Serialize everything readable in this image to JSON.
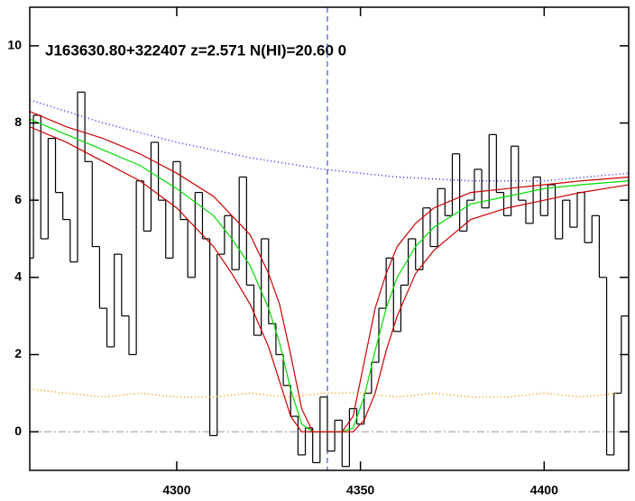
{
  "chart_data": {
    "type": "line",
    "title": "J163630.80+322407 z=2.571 N(HI)=20.60 0",
    "xlim": [
      4260,
      4423
    ],
    "ylim": [
      -1,
      11
    ],
    "xticks": [
      4300,
      4350,
      4400
    ],
    "yticks": [
      0,
      2,
      4,
      6,
      8,
      10
    ],
    "vline": 4341,
    "hline": 0,
    "flux": {
      "color": "#000000",
      "x": [
        4260,
        4262,
        4264,
        4266,
        4268,
        4270,
        4272,
        4274,
        4276,
        4278,
        4280,
        4282,
        4284,
        4286,
        4288,
        4290,
        4292,
        4294,
        4296,
        4298,
        4300,
        4302,
        4304,
        4306,
        4308,
        4310,
        4312,
        4314,
        4316,
        4318,
        4320,
        4322,
        4324,
        4326,
        4328,
        4330,
        4332,
        4334,
        4336,
        4338,
        4340,
        4342,
        4344,
        4346,
        4348,
        4350,
        4352,
        4354,
        4356,
        4358,
        4360,
        4362,
        4364,
        4366,
        4368,
        4370,
        4372,
        4374,
        4376,
        4378,
        4380,
        4382,
        4384,
        4386,
        4388,
        4390,
        4392,
        4394,
        4396,
        4398,
        4400,
        4402,
        4404,
        4406,
        4408,
        4410,
        4412,
        4414,
        4416,
        4418,
        4420,
        4422
      ],
      "values": [
        4.5,
        8.2,
        5.0,
        7.6,
        6.2,
        5.5,
        4.4,
        8.8,
        7.0,
        4.8,
        3.2,
        2.2,
        4.6,
        3.0,
        2.0,
        6.5,
        5.2,
        7.5,
        6.0,
        4.5,
        7.0,
        5.5,
        4.0,
        6.2,
        5.0,
        -0.1,
        4.6,
        5.6,
        4.2,
        6.6,
        3.8,
        2.5,
        5.0,
        2.8,
        2.0,
        1.2,
        0.4,
        -0.6,
        0.1,
        -0.8,
        0.9,
        -0.5,
        0.3,
        -0.9,
        0.6,
        0.2,
        1.0,
        1.8,
        3.2,
        4.5,
        2.6,
        3.8,
        5.0,
        4.2,
        5.8,
        4.8,
        6.3,
        5.6,
        7.2,
        5.2,
        6.0,
        6.8,
        5.8,
        7.7,
        6.2,
        5.6,
        7.4,
        6.0,
        5.4,
        6.6,
        5.6,
        6.4,
        5.0,
        6.0,
        5.3,
        6.2,
        4.9,
        5.6,
        4.0,
        -0.6,
        1.0,
        3.0
      ]
    },
    "series": [
      {
        "color": "#00dd00",
        "dash": "none",
        "x": [
          4260,
          4270,
          4280,
          4290,
          4300,
          4310,
          4315,
          4320,
          4325,
          4328,
          4331,
          4334,
          4337,
          4341,
          4345,
          4348,
          4351,
          4354,
          4357,
          4360,
          4365,
          4370,
          4380,
          4390,
          4400,
          4410,
          4423
        ],
        "values": [
          8.1,
          7.7,
          7.3,
          6.9,
          6.3,
          5.6,
          5.0,
          4.3,
          3.2,
          2.3,
          1.1,
          0.2,
          0,
          0,
          0,
          0.1,
          0.9,
          2.1,
          3.2,
          4.0,
          4.8,
          5.3,
          5.9,
          6.1,
          6.3,
          6.4,
          6.5
        ]
      },
      {
        "color": "#cc0000",
        "dash": "none",
        "x": [
          4260,
          4270,
          4280,
          4290,
          4300,
          4310,
          4315,
          4320,
          4325,
          4328,
          4331,
          4334,
          4337,
          4341,
          4345,
          4348,
          4351,
          4354,
          4357,
          4360,
          4365,
          4370,
          4380,
          4390,
          4400,
          4410,
          4423
        ],
        "values": [
          8.3,
          7.9,
          7.6,
          7.2,
          6.7,
          6.1,
          5.6,
          5.1,
          4.1,
          3.3,
          2.0,
          0.6,
          0,
          0,
          0,
          0.4,
          1.8,
          3.2,
          4.1,
          4.8,
          5.4,
          5.8,
          6.2,
          6.3,
          6.4,
          6.5,
          6.6
        ]
      },
      {
        "color": "#cc0000",
        "dash": "none",
        "x": [
          4260,
          4270,
          4280,
          4290,
          4300,
          4310,
          4315,
          4320,
          4325,
          4328,
          4331,
          4334,
          4337,
          4341,
          4345,
          4348,
          4351,
          4354,
          4357,
          4360,
          4365,
          4370,
          4380,
          4390,
          4400,
          4410,
          4423
        ],
        "values": [
          7.9,
          7.5,
          7.0,
          6.5,
          5.8,
          4.8,
          4.1,
          3.3,
          2.2,
          1.3,
          0.4,
          0,
          0,
          0,
          0,
          0,
          0.3,
          1.0,
          2.1,
          3.0,
          4.1,
          4.7,
          5.5,
          5.8,
          6.0,
          6.2,
          6.4
        ]
      },
      {
        "color": "#3333ff",
        "dash": "1 3",
        "x": [
          4260,
          4280,
          4300,
          4320,
          4340,
          4360,
          4380,
          4400,
          4423
        ],
        "values": [
          8.6,
          8.0,
          7.5,
          7.1,
          6.8,
          6.6,
          6.5,
          6.5,
          6.7
        ]
      },
      {
        "color": "#ff9900",
        "dash": "1 3",
        "x": [
          4260,
          4270,
          4280,
          4290,
          4300,
          4310,
          4320,
          4330,
          4340,
          4350,
          4360,
          4370,
          4380,
          4390,
          4400,
          4410,
          4420
        ],
        "values": [
          1.1,
          1.0,
          0.9,
          1.0,
          0.9,
          0.9,
          1.0,
          0.9,
          1.0,
          1.0,
          0.9,
          1.0,
          0.9,
          0.9,
          1.0,
          0.9,
          1.0
        ]
      }
    ]
  }
}
